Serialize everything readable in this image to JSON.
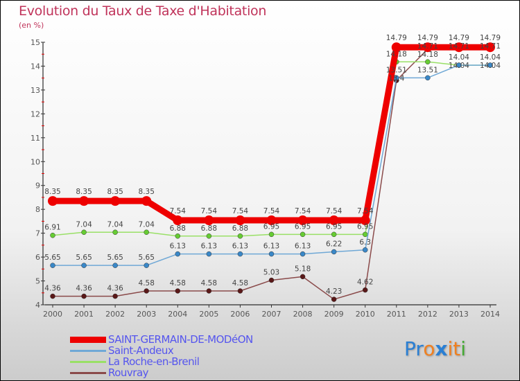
{
  "chart_data": {
    "type": "line",
    "title": "Evolution du Taux de Taxe d'Habitation",
    "subtitle": "(en %)",
    "xlabel": "",
    "ylabel": "(en %)",
    "x": [
      "2000",
      "2001",
      "2002",
      "2003",
      "2004",
      "2005",
      "2006",
      "2007",
      "2008",
      "2009",
      "2010",
      "2011",
      "2012",
      "2013",
      "2014"
    ],
    "ylim": [
      4,
      15
    ],
    "yticks": [
      "4",
      "5",
      "6",
      "7",
      "8",
      "9",
      "10",
      "11",
      "12",
      "13",
      "14",
      "15"
    ],
    "legend_position": "bottom-left",
    "series": [
      {
        "name": "SAINT-GERMAIN-DE-MODéON",
        "color": "#ee0000",
        "point": "#ee0000",
        "values": [
          8.35,
          8.35,
          8.35,
          8.35,
          7.54,
          7.54,
          7.54,
          7.54,
          7.54,
          7.54,
          7.54,
          14.79,
          14.79,
          14.79,
          14.79
        ],
        "labels": [
          "8.35",
          "8.35",
          "8.35",
          "8.35",
          "7.54",
          "7.54",
          "7.54",
          "7.54",
          "7.54",
          "7.54",
          "7.54",
          "14.79",
          "14.79",
          "14.79",
          "14.79"
        ]
      },
      {
        "name": "Saint-Andeux",
        "color": "#6fa8d6",
        "point": "#3a88c8",
        "values": [
          5.65,
          5.65,
          5.65,
          5.65,
          6.13,
          6.13,
          6.13,
          6.13,
          6.13,
          6.22,
          6.3,
          13.51,
          13.51,
          14.04,
          14.04
        ],
        "labels": [
          "5.65",
          "5.65",
          "5.65",
          "5.65",
          "6.13",
          "6.13",
          "6.13",
          "6.13",
          "6.13",
          "6.22",
          "6.3",
          "13.51",
          "13.51",
          "14.04",
          "14.04"
        ]
      },
      {
        "name": "La Roche-en-Brenil",
        "color": "#99e066",
        "point": "#66cc33",
        "values": [
          6.91,
          7.04,
          7.04,
          7.04,
          6.88,
          6.88,
          6.88,
          6.95,
          6.95,
          6.95,
          6.95,
          14.18,
          14.18,
          14.04,
          14.04
        ],
        "labels": [
          "6.91",
          "7.04",
          "7.04",
          "7.04",
          "6.88",
          "6.88",
          "6.88",
          "6.95",
          "6.95",
          "6.95",
          "6.95",
          "14.18",
          "14.18",
          "14.04",
          "14.04"
        ]
      },
      {
        "name": "Rouvray",
        "color": "#8a4a4a",
        "point": "#5a1818",
        "values": [
          4.36,
          4.36,
          4.36,
          4.58,
          4.58,
          4.58,
          4.58,
          5.03,
          5.18,
          4.23,
          4.62,
          13.4,
          14.71,
          14.71,
          14.71
        ],
        "labels": [
          "4.36",
          "4.36",
          "4.36",
          "4.58",
          "4.58",
          "4.58",
          "4.58",
          "5.03",
          "5.18",
          "4.23",
          "4.62",
          "13.4",
          "14.71",
          "14.71",
          "14.71"
        ]
      }
    ]
  },
  "logo": {
    "text": "Proxiti",
    "letters": [
      "P",
      "r",
      "o",
      "x",
      "i",
      "t",
      "i"
    ],
    "colors": [
      "#2a7fd4",
      "#2a7fd4",
      "#f08020",
      "#2a7fd4",
      "#f08020",
      "#f08020",
      "#44aa33"
    ]
  }
}
